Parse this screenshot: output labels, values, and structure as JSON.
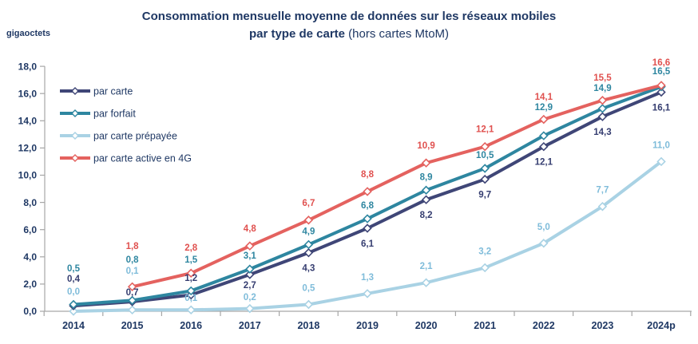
{
  "header": {
    "unit_label": "gigaoctets",
    "title_line1": "Consommation mensuelle moyenne de données sur les réseaux mobiles",
    "title_line2_bold": "par type de carte",
    "title_line2_regular": " (hors cartes MtoM)"
  },
  "chart_data": {
    "type": "line",
    "title": "Consommation mensuelle moyenne de données sur les réseaux mobiles par type de carte (hors cartes MtoM)",
    "ylabel": "gigaoctets",
    "xlabel": "",
    "grid": false,
    "legend_position": "top-left",
    "ylim": [
      0,
      18
    ],
    "ytick_step": 2,
    "ytick_labels": [
      "0,0",
      "2,0",
      "4,0",
      "6,0",
      "8,0",
      "10,0",
      "12,0",
      "14,0",
      "16,0",
      "18,0"
    ],
    "categories": [
      "2014",
      "2015",
      "2016",
      "2017",
      "2018",
      "2019",
      "2020",
      "2021",
      "2022",
      "2023",
      "2024p"
    ],
    "series": [
      {
        "name": "par carte",
        "color": "#3F4677",
        "label_color": "#353D70",
        "values": [
          0.4,
          0.7,
          1.2,
          2.7,
          4.3,
          6.1,
          8.2,
          9.7,
          12.1,
          14.3,
          16.1
        ],
        "labels": [
          "0,4",
          "0,7",
          "1,2",
          "2,7",
          "4,3",
          "6,1",
          "8,2",
          "9,7",
          "12,1",
          "14,3",
          "16,1"
        ]
      },
      {
        "name": "par forfait",
        "color": "#2E86A0",
        "label_color": "#2E86A0",
        "values": [
          0.5,
          0.8,
          1.5,
          3.1,
          4.9,
          6.8,
          8.9,
          10.5,
          12.9,
          14.9,
          16.5
        ],
        "labels": [
          "0,5",
          "0,8",
          "1,5",
          "3,1",
          "4,9",
          "6,8",
          "8,9",
          "10,5",
          "12,9",
          "14,9",
          "16,5"
        ]
      },
      {
        "name": "par carte prépayée",
        "color": "#A9D2E4",
        "label_color": "#7FBCDA",
        "values": [
          0.0,
          0.1,
          0.1,
          0.2,
          0.5,
          1.3,
          2.1,
          3.2,
          5.0,
          7.7,
          11.0
        ],
        "labels": [
          "0,0",
          "0,1",
          "0,1",
          "0,2",
          "0,5",
          "1,3",
          "2,1",
          "3,2",
          "5,0",
          "7,7",
          "11,0"
        ]
      },
      {
        "name": "par carte active en 4G",
        "color": "#E4625F",
        "label_color": "#E0514F",
        "values": [
          null,
          1.8,
          2.8,
          4.8,
          6.7,
          8.8,
          10.9,
          12.1,
          14.1,
          15.5,
          16.6
        ],
        "labels": [
          null,
          "1,8",
          "2,8",
          "4,8",
          "6,7",
          "8,8",
          "10,9",
          "12,1",
          "14,1",
          "15,5",
          "16,6"
        ]
      }
    ]
  },
  "colors": {
    "axis_line": "#A6A6A6",
    "tick_text": "#1F3864",
    "title_text": "#1F3864",
    "marker_fill": "#FFFFFF"
  }
}
